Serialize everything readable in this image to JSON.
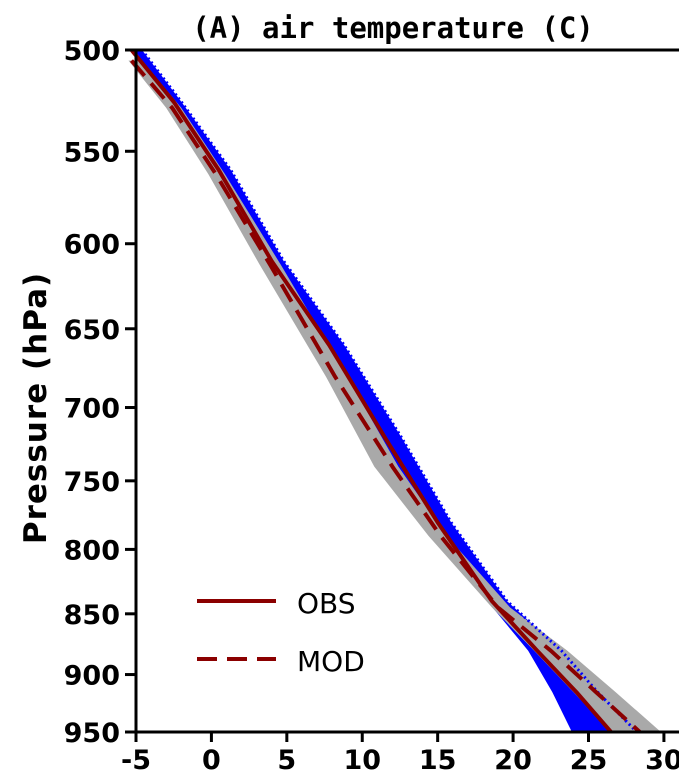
{
  "chart_data": {
    "type": "line",
    "title": "(A) air temperature (C)",
    "xlabel": "",
    "ylabel": "Pressure (hPa)",
    "xlim": [
      -5,
      31
    ],
    "ylim": [
      950,
      500
    ],
    "y_scale": "log",
    "y_inverted": true,
    "xticks": [
      -5,
      0,
      5,
      10,
      15,
      20,
      25,
      30
    ],
    "xtick_labels": [
      "-5",
      "0",
      "5",
      "10",
      "15",
      "20",
      "25",
      "30"
    ],
    "yticks": [
      500,
      550,
      600,
      650,
      700,
      750,
      800,
      850,
      900,
      950
    ],
    "ytick_labels": [
      "500",
      "550",
      "600",
      "650",
      "700",
      "750",
      "800",
      "850",
      "900",
      "950"
    ],
    "grid": false,
    "legend_position": "bottom-left",
    "series": [
      {
        "name": "OBS",
        "style": "solid",
        "color": "#8b0000",
        "x": [
          -5.3,
          -2.5,
          0.5,
          4.0,
          7.8,
          11.5,
          15.0,
          18.6,
          21.6,
          24.2,
          26.5
        ],
        "pressure": [
          500,
          525,
          560,
          610,
          660,
          720,
          780,
          840,
          880,
          915,
          950
        ],
        "shading": {
          "color": "#0000ff",
          "lower": [
            -5.1,
            -2.7,
            0.2,
            3.3,
            7.0,
            11.0,
            14.7,
            18.3,
            21.0,
            22.6,
            23.9
          ],
          "upper": [
            -4.6,
            -2.0,
            1.3,
            4.8,
            8.8,
            12.6,
            15.9,
            19.6,
            23.2,
            25.6,
            28.2
          ]
        }
      },
      {
        "name": "MOD",
        "style": "dashed",
        "color": "#8b0000",
        "x": [
          -5.3,
          -2.6,
          0.3,
          3.9,
          8.2,
          12.0,
          15.2,
          19.0,
          22.5,
          25.5,
          28.4
        ],
        "pressure": [
          505,
          528,
          562,
          612,
          680,
          740,
          790,
          845,
          880,
          915,
          950
        ],
        "shading": {
          "color": "#a9a9a9",
          "lower": [
            -5.5,
            -3.0,
            -0.2,
            3.2,
            7.6,
            10.8,
            14.4,
            18.6,
            21.4,
            24.0,
            26.5
          ],
          "upper": [
            -4.6,
            -2.0,
            0.9,
            4.6,
            9.0,
            12.4,
            15.6,
            19.8,
            23.6,
            26.8,
            29.8
          ]
        }
      }
    ]
  }
}
